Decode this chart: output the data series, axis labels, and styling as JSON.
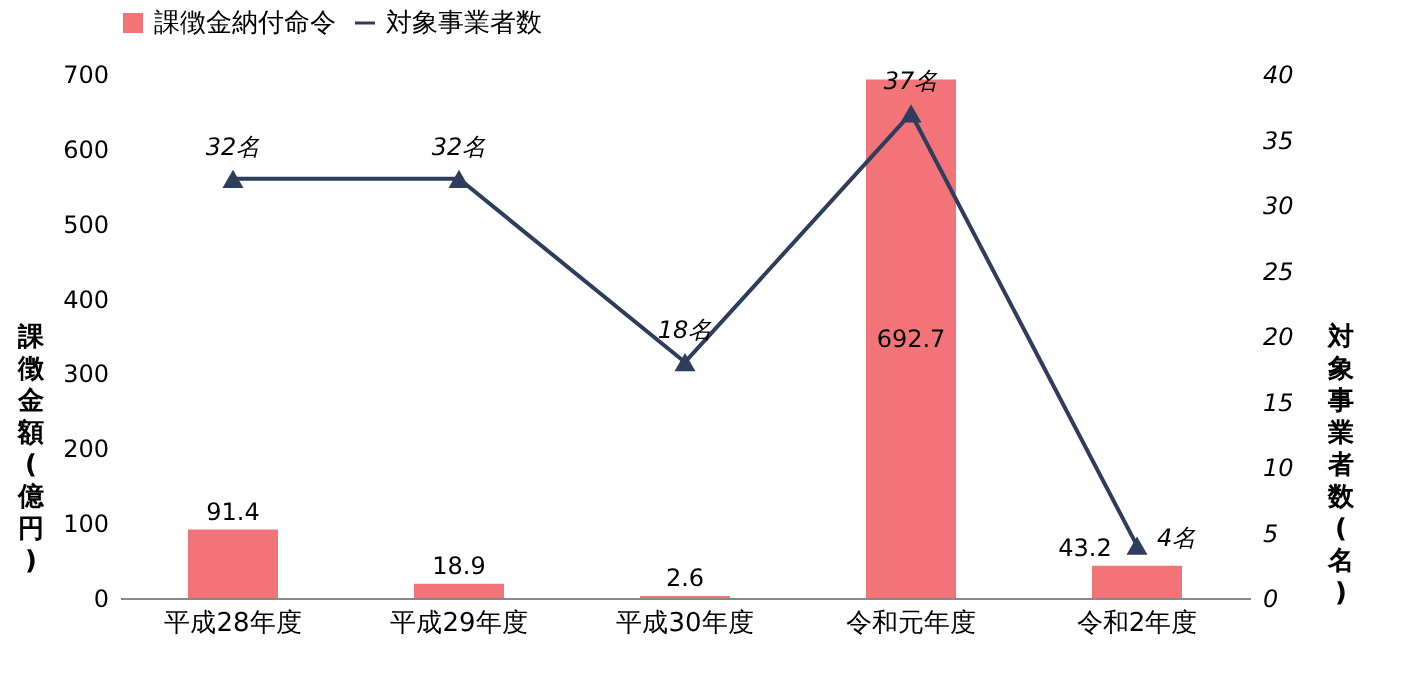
{
  "chart_data": {
    "type": "bar",
    "ylabel": "課徴金額(億円)",
    "y2label": "対象事業者数(名)",
    "categories": [
      "平成28年度",
      "平成29年度",
      "平成30年度",
      "令和元年度",
      "令和2年度"
    ],
    "series": [
      {
        "name": "課徴金納付命令",
        "color": "#f27479",
        "values": [
          91.4,
          18.9,
          2.6,
          692.7,
          43.2
        ],
        "value_labels": [
          "91.4",
          "18.9",
          "2.6",
          "692.7",
          "43.2"
        ]
      },
      {
        "name": "対象事業者数",
        "type": "line",
        "axis": "y2",
        "color": "#2f3d5c",
        "marker": "triangle",
        "line_style": "solid",
        "values": [
          32,
          32,
          18,
          37,
          4
        ],
        "value_labels": [
          "32名",
          "32名",
          "18名",
          "37名",
          "4名"
        ]
      }
    ],
    "ylim": [
      0,
      700
    ],
    "yticks": [
      0,
      100,
      200,
      300,
      400,
      500,
      600,
      700
    ],
    "y2lim": [
      0,
      40
    ],
    "y2ticks": [
      0,
      5,
      10,
      15,
      20,
      25,
      30,
      35,
      40
    ],
    "grid": false,
    "legend": "top"
  }
}
